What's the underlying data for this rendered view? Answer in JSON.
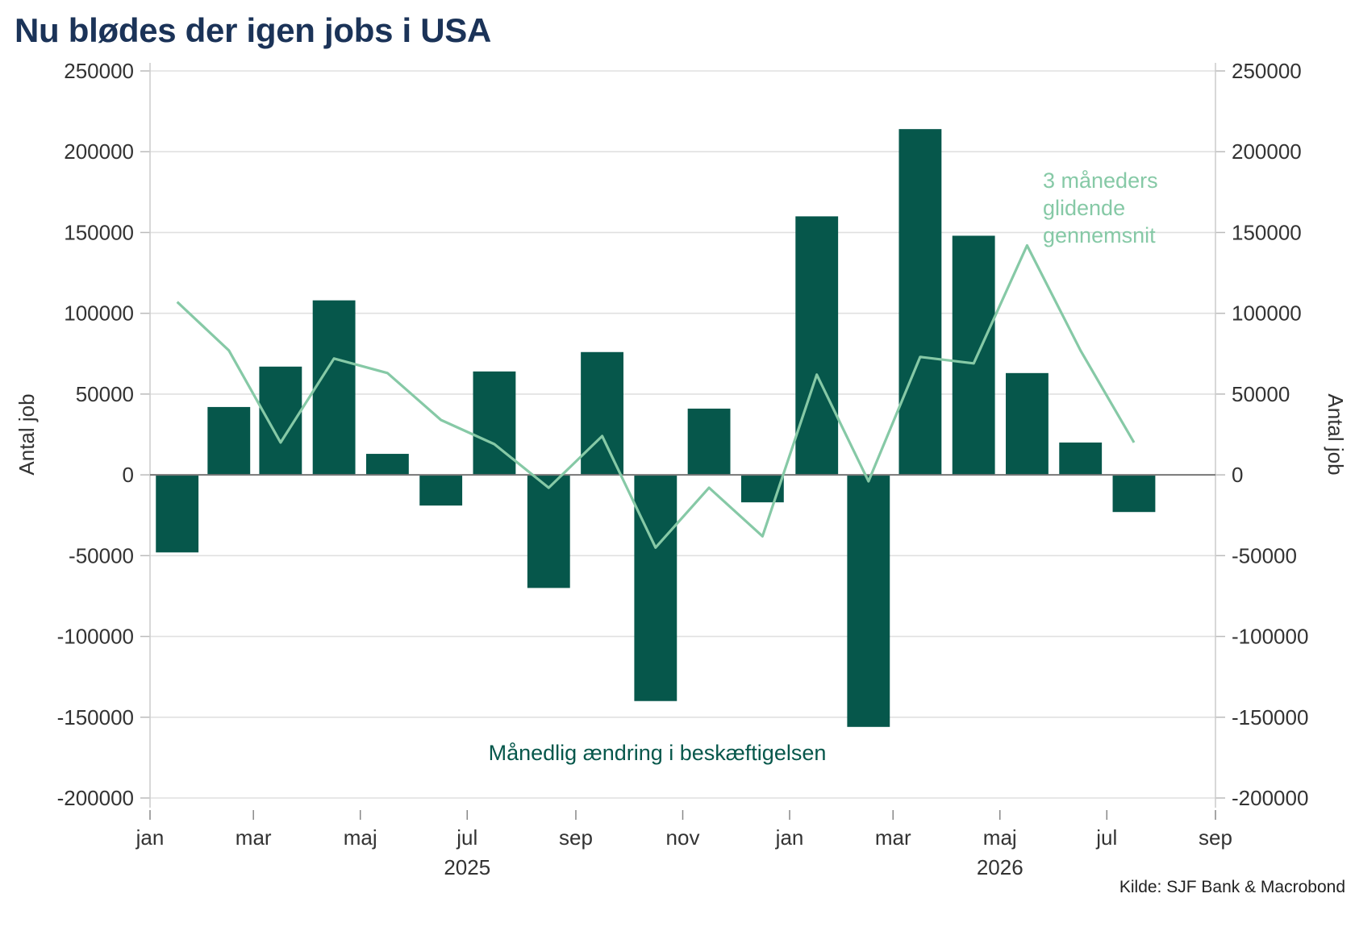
{
  "title": "Nu blødes der igen jobs i USA",
  "source": "Kilde: SJF Bank & Macrobond",
  "colors": {
    "title": "#1b3358",
    "bars": "#06574b",
    "line": "#86c9a6",
    "grid": "#e0e0e0",
    "zero_line": "#777777",
    "axis_text": "#333333"
  },
  "chart_data": {
    "type": "bar",
    "ylabel_left": "Antal job",
    "ylabel_right": "Antal job",
    "ylim": [
      -200000,
      250000
    ],
    "yticks": [
      250000,
      200000,
      150000,
      100000,
      50000,
      0,
      -50000,
      -100000,
      -150000,
      -200000
    ],
    "grid": true,
    "x_range": [
      "2025-01-01",
      "2026-09-01"
    ],
    "x_tick_labels": [
      {
        "date": "2025-01-01",
        "label": "jan"
      },
      {
        "date": "2025-03-01",
        "label": "mar"
      },
      {
        "date": "2025-05-01",
        "label": "maj"
      },
      {
        "date": "2025-07-01",
        "label": "jul"
      },
      {
        "date": "2025-09-01",
        "label": "sep"
      },
      {
        "date": "2025-11-01",
        "label": "nov"
      },
      {
        "date": "2026-01-01",
        "label": "jan"
      },
      {
        "date": "2026-03-01",
        "label": "mar"
      },
      {
        "date": "2026-05-01",
        "label": "maj"
      },
      {
        "date": "2026-07-01",
        "label": "jul"
      },
      {
        "date": "2026-09-01",
        "label": "sep"
      }
    ],
    "year_labels": [
      {
        "date": "2025-07-01",
        "label": "2025"
      },
      {
        "date": "2026-05-01",
        "label": "2026"
      }
    ],
    "x": [
      "2025-01",
      "2025-02",
      "2025-03",
      "2025-04",
      "2025-05",
      "2025-06",
      "2025-07",
      "2025-08",
      "2025-09",
      "2025-10",
      "2025-11",
      "2025-12",
      "2026-01",
      "2026-02",
      "2026-03",
      "2026-04",
      "2026-05",
      "2026-06",
      "2026-07"
    ],
    "series": [
      {
        "name": "Månedlig ændring i beskæftigelsen",
        "type": "bar",
        "values": [
          -48000,
          42000,
          67000,
          108000,
          13000,
          -19000,
          64000,
          -70000,
          76000,
          -140000,
          41000,
          -17000,
          160000,
          -156000,
          214000,
          148000,
          63000,
          20000,
          -23000
        ]
      },
      {
        "name": "3 måneders glidende gennemsnit",
        "type": "line",
        "values": [
          107000,
          77000,
          20000,
          72000,
          63000,
          34000,
          19000,
          -8000,
          24000,
          -45000,
          -8000,
          -38000,
          62000,
          -4000,
          73000,
          69000,
          142000,
          77000,
          20000
        ]
      }
    ],
    "annotations": [
      {
        "text_lines": [
          "3 måneders",
          "glidende",
          "gennemsnit"
        ],
        "series": "line"
      },
      {
        "text_lines": [
          "Månedlig ændring i beskæftigelsen"
        ],
        "series": "bars"
      }
    ]
  }
}
